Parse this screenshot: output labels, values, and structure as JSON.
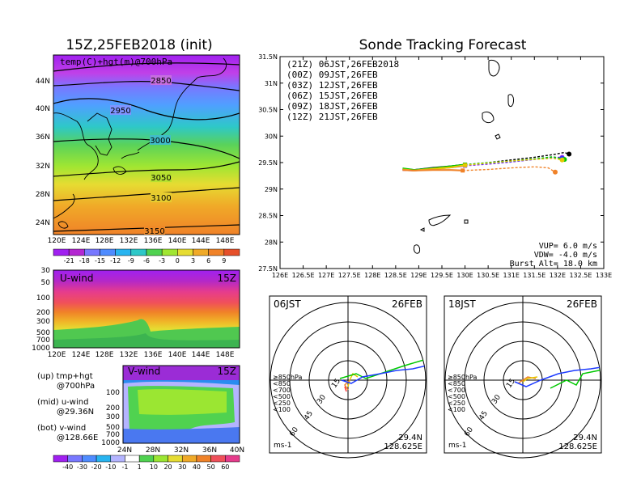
{
  "left": {
    "title": "15Z,25FEB2018 (init)",
    "map": {
      "overlay_label": "temp(C)+hgt(m)@700hPa",
      "contour_labels": [
        "2850",
        "2950",
        "3000",
        "3050",
        "3100",
        "3150"
      ],
      "y_ticks": [
        "44N",
        "40N",
        "36N",
        "32N",
        "28N",
        "24N"
      ],
      "x_ticks": [
        "120E",
        "124E",
        "128E",
        "132E",
        "136E",
        "140E",
        "144E",
        "148E"
      ],
      "colorbar_labels": [
        "-21",
        "-18",
        "-15",
        "-12",
        "-9",
        "-6",
        "-3",
        "0",
        "3",
        "6",
        "9"
      ]
    },
    "uwind": {
      "label": "U-wind",
      "time": "15Z",
      "y_ticks": [
        "30",
        "50",
        "100",
        "200",
        "300",
        "500",
        "700",
        "1000"
      ],
      "x_ticks": [
        "120E",
        "124E",
        "128E",
        "132E",
        "136E",
        "140E",
        "144E",
        "148E"
      ]
    },
    "vwind": {
      "label": "V-wind",
      "time": "15Z",
      "y_ticks": [
        "100",
        "200",
        "300",
        "500",
        "700",
        "1000"
      ],
      "x_ticks": [
        "24N",
        "28N",
        "32N",
        "36N",
        "40N"
      ],
      "colorbar_labels": [
        "-40",
        "-30",
        "-20",
        "-10",
        "-1",
        "1",
        "10",
        "20",
        "30",
        "40",
        "50",
        "60"
      ]
    },
    "legend": [
      {
        "title": "(up) tmp+hgt",
        "sub": "@700hPa"
      },
      {
        "title": "(mid) u-wind",
        "sub": "@29.36N"
      },
      {
        "title": "(bot) v-wind",
        "sub": "@128.66E"
      }
    ]
  },
  "colors": {
    "launch_21z": "#000000",
    "launch_00z": "#a020f0",
    "launch_03z": "#1e3cff",
    "launch_06z": "#00c800",
    "launch_09z": "#e6c800",
    "launch_12z": "#f08228"
  },
  "chart_data": [
    {
      "type": "line",
      "title": "Sonde Tracking Forecast",
      "xlim": [
        126,
        133
      ],
      "ylim": [
        27.5,
        31.5
      ],
      "x_ticks": [
        "126E",
        "126.5E",
        "127E",
        "127.5E",
        "128E",
        "128.5E",
        "129E",
        "129.5E",
        "130E",
        "130.5E",
        "131E",
        "131.5E",
        "132E",
        "132.5E",
        "133E"
      ],
      "y_ticks": [
        "31.5N",
        "31N",
        "30.5N",
        "30N",
        "29.5N",
        "29N",
        "28.5N",
        "28N",
        "27.5N"
      ],
      "series": [
        {
          "name": "(21Z)  06JST,26FEB2018",
          "color": "#000000",
          "style": "solid-dash",
          "x": [
            128.65,
            128.9,
            129.3,
            129.7,
            130.0,
            130.5,
            131.0,
            131.5,
            131.9,
            132.15,
            132.25
          ],
          "y": [
            29.37,
            29.36,
            29.4,
            29.43,
            29.46,
            29.5,
            29.55,
            29.6,
            29.65,
            29.69,
            29.66
          ]
        },
        {
          "name": "(00Z)  09JST,26FEB",
          "color": "#a020f0",
          "style": "solid-dash",
          "x": [
            128.65,
            128.9,
            129.3,
            129.7,
            130.0,
            130.5,
            131.0,
            131.5,
            131.9,
            132.1
          ],
          "y": [
            29.36,
            29.35,
            29.38,
            29.41,
            29.44,
            29.47,
            29.51,
            29.56,
            29.6,
            29.6
          ]
        },
        {
          "name": "(03Z)  12JST,26FEB",
          "color": "#1e3cff",
          "style": "solid-dash",
          "x": [
            128.65,
            128.9,
            129.3,
            129.7,
            130.0,
            130.5,
            131.0,
            131.5,
            131.9,
            132.1
          ],
          "y": [
            29.38,
            29.36,
            29.39,
            29.42,
            29.45,
            29.48,
            29.52,
            29.56,
            29.6,
            29.58
          ]
        },
        {
          "name": "(06Z)  15JST,26FEB",
          "color": "#00c800",
          "style": "solid-dash",
          "x": [
            128.65,
            128.9,
            129.3,
            129.7,
            130.0,
            130.5,
            131.0,
            131.5,
            131.9,
            132.15
          ],
          "y": [
            29.39,
            29.36,
            29.39,
            29.43,
            29.46,
            29.5,
            29.53,
            29.57,
            29.61,
            29.56
          ]
        },
        {
          "name": "(09Z)  18JST,26FEB",
          "color": "#e6c800",
          "style": "solid-dash",
          "x": [
            128.65,
            128.9,
            129.3,
            129.7,
            130.0,
            130.5,
            131.0,
            131.5,
            131.9,
            132.1
          ],
          "y": [
            29.37,
            29.35,
            29.38,
            29.41,
            29.45,
            29.49,
            29.53,
            29.56,
            29.58,
            29.55
          ]
        },
        {
          "name": "(12Z)  21JST,26FEB",
          "color": "#f08228",
          "style": "solid-dash",
          "x": [
            128.65,
            128.9,
            129.3,
            129.7,
            129.95,
            130.5,
            131.0,
            131.5,
            131.8,
            131.95
          ],
          "y": [
            29.36,
            29.35,
            29.36,
            29.36,
            29.35,
            29.37,
            29.4,
            29.42,
            29.4,
            29.32
          ]
        }
      ],
      "annotations": [
        "VUP=  6.0  m/s",
        "VDW= -4.0  m/s",
        "Burst Alt=  18.0  km"
      ]
    },
    {
      "type": "polar",
      "title_left": "06JST",
      "title_right": "26FEB",
      "ring_labels": [
        "15",
        "30",
        "45",
        "60"
      ],
      "level_legend": [
        "≥850hPa",
        "<850",
        "<700",
        "<500",
        "<250",
        "<100"
      ],
      "unit": "ms-1",
      "location": [
        "29.4N",
        "128.625E"
      ]
    },
    {
      "type": "polar",
      "title_left": "18JST",
      "title_right": "26FEB",
      "ring_labels": [
        "15",
        "30",
        "45",
        "60"
      ],
      "level_legend": [
        "≥850hPa",
        "<850",
        "<700",
        "<500",
        "<250",
        "<100"
      ],
      "unit": "ms-1",
      "location": [
        "29.4N",
        "128.625E"
      ]
    }
  ]
}
